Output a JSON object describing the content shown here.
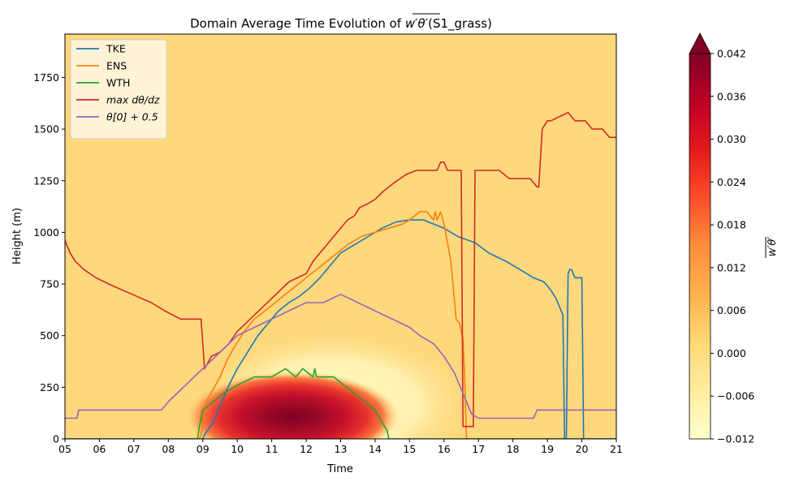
{
  "chart_data": {
    "type": "line",
    "title_prefix": "Domain Average Time Evolution of ",
    "title_symbol": "w′θ′",
    "title_suffix": "(S1_grass)",
    "xlabel": "Time",
    "ylabel": "Height (m)",
    "xlim": [
      5,
      21
    ],
    "ylim": [
      0,
      1960
    ],
    "xticks": [
      5,
      6,
      7,
      8,
      9,
      10,
      11,
      12,
      13,
      14,
      15,
      16,
      17,
      18,
      19,
      20,
      21
    ],
    "xtick_labels": [
      "05",
      "06",
      "07",
      "08",
      "09",
      "10",
      "11",
      "12",
      "13",
      "14",
      "15",
      "16",
      "17",
      "18",
      "19",
      "20",
      "21"
    ],
    "yticks": [
      0,
      250,
      500,
      750,
      1000,
      1250,
      1500,
      1750
    ],
    "grid": false,
    "legend_position": "top-left",
    "series": [
      {
        "name": "TKE",
        "color": "#1f77b4",
        "x": [
          5,
          9.0,
          9.05,
          9.3,
          9.5,
          9.7,
          10.0,
          10.3,
          10.6,
          10.9,
          11.2,
          11.5,
          11.8,
          12.1,
          12.4,
          12.7,
          13.0,
          13.4,
          13.8,
          14.2,
          14.6,
          15.0,
          15.4,
          16.0,
          16.4,
          16.9,
          17.3,
          17.8,
          18.2,
          18.6,
          18.9,
          19.1,
          19.25,
          19.35,
          19.45,
          19.5,
          19.55,
          19.6,
          19.65,
          19.7,
          19.8,
          19.85,
          19.9,
          20.0,
          20.05,
          21
        ],
        "y": [
          0,
          0,
          20,
          80,
          160,
          240,
          340,
          420,
          500,
          560,
          620,
          660,
          690,
          730,
          780,
          840,
          900,
          940,
          980,
          1020,
          1050,
          1060,
          1060,
          1020,
          980,
          950,
          900,
          860,
          820,
          780,
          760,
          720,
          680,
          640,
          600,
          0,
          0,
          800,
          820,
          820,
          780,
          780,
          780,
          780,
          0,
          0
        ]
      },
      {
        "name": "ENS",
        "color": "#ff7f0e",
        "x": [
          5,
          8.9,
          8.95,
          9.1,
          9.3,
          9.5,
          9.7,
          9.9,
          10.2,
          10.5,
          10.8,
          11.1,
          11.4,
          11.7,
          12.0,
          12.3,
          12.6,
          12.9,
          13.2,
          13.6,
          14.0,
          14.4,
          14.8,
          15.0,
          15.3,
          15.5,
          15.7,
          15.75,
          15.8,
          15.9,
          16.0,
          16.2,
          16.35,
          16.45,
          16.55,
          16.6,
          16.65,
          21
        ],
        "y": [
          0,
          0,
          20,
          180,
          240,
          300,
          380,
          440,
          520,
          580,
          620,
          660,
          700,
          740,
          780,
          820,
          860,
          900,
          940,
          980,
          1000,
          1020,
          1040,
          1060,
          1100,
          1100,
          1060,
          1100,
          1060,
          1100,
          1040,
          860,
          580,
          560,
          480,
          300,
          0,
          0
        ]
      },
      {
        "name": "WTH",
        "color": "#2ca02c",
        "x": [
          5,
          8.85,
          8.9,
          9.0,
          9.3,
          9.6,
          10.0,
          10.5,
          11.0,
          11.4,
          11.7,
          11.9,
          12.2,
          12.25,
          12.3,
          12.5,
          12.8,
          13.1,
          13.4,
          13.7,
          14.0,
          14.2,
          14.35,
          14.4,
          14.45,
          21
        ],
        "y": [
          0,
          0,
          60,
          140,
          180,
          220,
          260,
          300,
          300,
          340,
          300,
          340,
          300,
          340,
          300,
          300,
          300,
          260,
          220,
          180,
          140,
          80,
          40,
          0,
          0,
          0
        ]
      },
      {
        "name": "max dθ/dz",
        "label_html": "max dθ/dz",
        "color": "#d62728",
        "x": [
          5,
          5.05,
          5.15,
          5.3,
          5.55,
          5.9,
          6.4,
          6.95,
          7.5,
          7.9,
          8.35,
          8.95,
          9.05,
          9.25,
          9.5,
          9.75,
          10.0,
          10.25,
          10.5,
          10.75,
          11.0,
          11.25,
          11.5,
          11.75,
          12.0,
          12.2,
          12.4,
          12.6,
          12.8,
          13.0,
          13.2,
          13.4,
          13.55,
          13.8,
          14.0,
          14.25,
          14.55,
          14.9,
          15.2,
          15.5,
          15.8,
          15.9,
          16.0,
          16.1,
          16.2,
          16.5,
          16.55,
          16.65,
          16.85,
          16.9,
          17.3,
          17.6,
          17.9,
          18.5,
          18.7,
          18.75,
          18.85,
          19.0,
          19.1,
          19.6,
          19.8,
          20.1,
          20.3,
          20.6,
          20.8,
          20.9,
          21
        ],
        "y": [
          960,
          940,
          900,
          860,
          820,
          780,
          740,
          700,
          660,
          620,
          580,
          580,
          340,
          400,
          420,
          460,
          520,
          560,
          600,
          640,
          680,
          720,
          760,
          780,
          800,
          860,
          900,
          940,
          980,
          1020,
          1060,
          1080,
          1120,
          1140,
          1160,
          1200,
          1240,
          1280,
          1300,
          1300,
          1300,
          1340,
          1340,
          1300,
          1300,
          1300,
          60,
          60,
          60,
          1300,
          1300,
          1300,
          1260,
          1260,
          1220,
          1220,
          1500,
          1540,
          1540,
          1580,
          1540,
          1540,
          1500,
          1500,
          1460,
          1460,
          1460
        ]
      },
      {
        "name": "θ[0] + 0.5",
        "label_html": "θ[0] + 0.5",
        "color": "#9467bd",
        "x": [
          5,
          5.35,
          5.4,
          6.0,
          7.0,
          7.8,
          8.0,
          8.25,
          8.5,
          8.75,
          9.0,
          9.25,
          9.5,
          9.75,
          10.0,
          10.5,
          11.0,
          11.5,
          12.0,
          12.5,
          13.0,
          13.5,
          14.0,
          14.5,
          15.0,
          15.3,
          15.7,
          16.0,
          16.3,
          16.6,
          16.8,
          17.0,
          18.0,
          18.6,
          18.7,
          21
        ],
        "y": [
          100,
          100,
          140,
          140,
          140,
          140,
          180,
          220,
          260,
          300,
          340,
          380,
          420,
          460,
          500,
          540,
          580,
          620,
          660,
          660,
          700,
          660,
          620,
          580,
          540,
          500,
          460,
          400,
          320,
          200,
          120,
          100,
          100,
          100,
          140,
          140
        ]
      }
    ],
    "colorbar": {
      "label": "w′θ′",
      "ticks": [
        0.042,
        0.036,
        0.03,
        0.024,
        0.018,
        0.012,
        0.006,
        0.0,
        -0.006,
        -0.012
      ],
      "tick_labels": [
        "0.042",
        "0.036",
        "0.030",
        "0.024",
        "0.018",
        "0.012",
        "0.006",
        "0.000",
        "−0.006",
        "−0.012"
      ],
      "range": [
        -0.012,
        0.042
      ],
      "colormap": "YlOrRd"
    }
  }
}
